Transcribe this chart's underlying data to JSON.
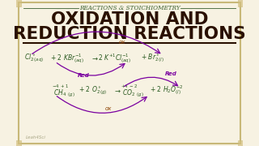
{
  "bg_color": "#f7f2e2",
  "border_color": "#c8b878",
  "title_top": "REACTIONS & STOICHIOMETRY",
  "title_main1": "OXIDATION AND",
  "title_main2": "REDUCTION REACTIONS",
  "title_color": "#2a1000",
  "title_top_color": "#3a6030",
  "eq1_color": "#2a5a20",
  "eq2_color": "#2a5a20",
  "ox_color": "#8b4000",
  "red_color": "#9400a0",
  "purple_color": "#7a00a0",
  "watermark": "Leah4Sci",
  "watermark_color": "#aaa888"
}
